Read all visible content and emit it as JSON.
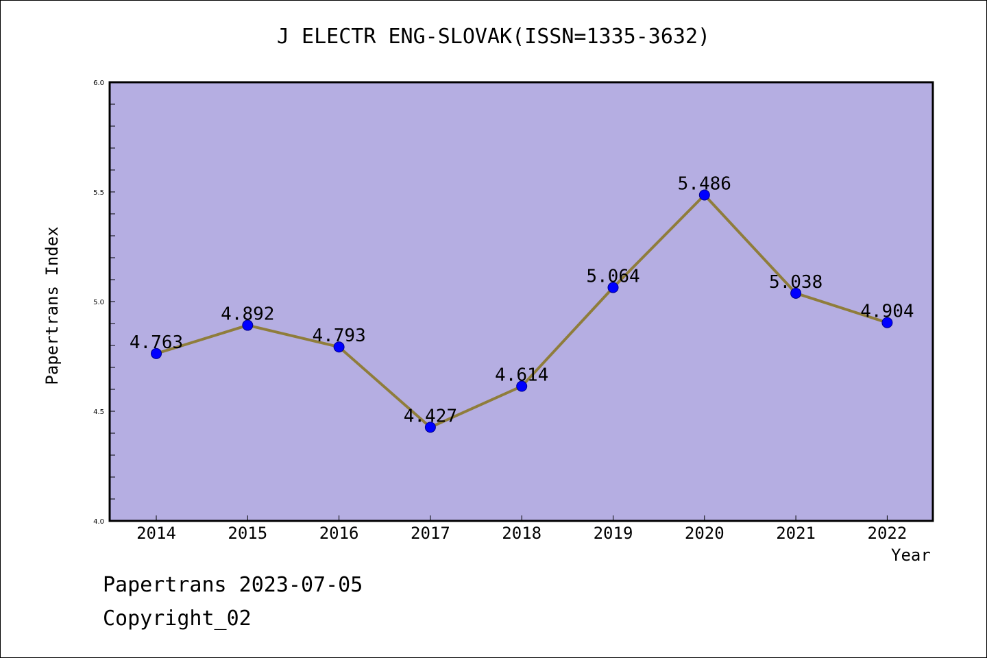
{
  "footer": {
    "line1": "Papertrans 2023-07-05",
    "line2": "Copyright_02"
  },
  "chart_data": {
    "type": "line",
    "title": "J ELECTR ENG-SLOVAK(ISSN=1335-3632)",
    "xlabel": "Year",
    "ylabel": "Papertrans Index",
    "x": [
      "2014",
      "2015",
      "2016",
      "2017",
      "2018",
      "2019",
      "2020",
      "2021",
      "2022"
    ],
    "series": [
      {
        "values": [
          4.763,
          4.892,
          4.793,
          4.427,
          4.614,
          5.064,
          5.486,
          5.038,
          4.904
        ],
        "labels": [
          "4.763",
          "4.892",
          "4.793",
          "4.427",
          "4.614",
          "5.064",
          "5.486",
          "5.038",
          "4.904"
        ]
      }
    ],
    "ylim": [
      4.0,
      6.0
    ],
    "yticks": [
      "4.0",
      "4.5",
      "5.0",
      "5.5",
      "6.0"
    ],
    "grid": false,
    "colors": {
      "plot_background": "#b5aee2",
      "line": "#8f7d3b",
      "marker": "#0000ff"
    }
  }
}
